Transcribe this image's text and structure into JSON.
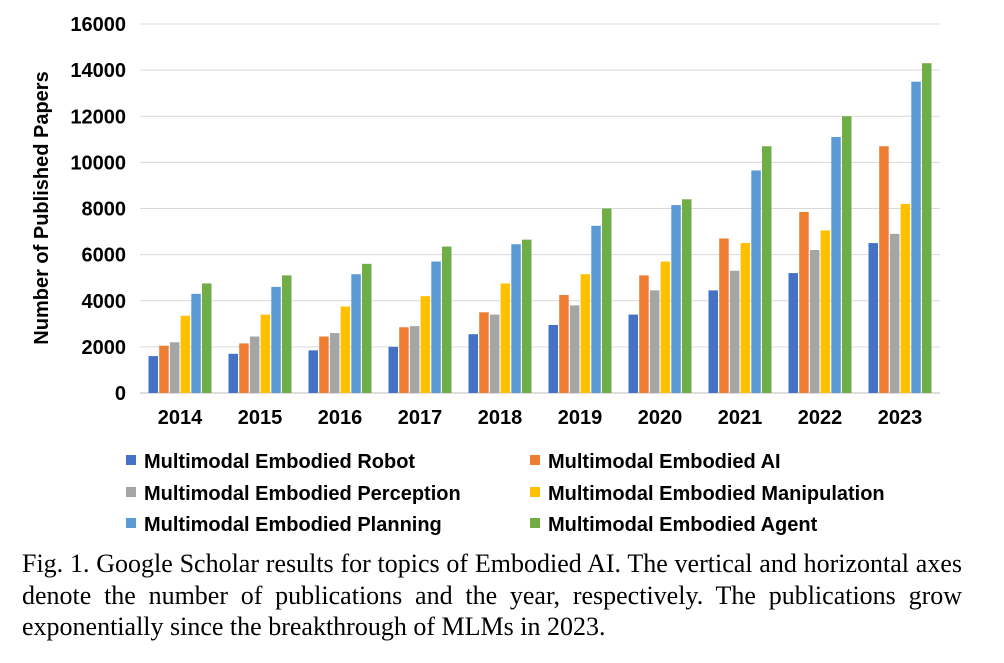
{
  "chart_data": {
    "type": "bar",
    "ylabel": "Number of Published Papers",
    "xlabel": "",
    "ylim": [
      0,
      16000
    ],
    "yticks": [
      "0",
      "2000",
      "4000",
      "6000",
      "8000",
      "10000",
      "12000",
      "14000",
      "16000"
    ],
    "categories": [
      "2014",
      "2015",
      "2016",
      "2017",
      "2018",
      "2019",
      "2020",
      "2021",
      "2022",
      "2023"
    ],
    "grid": true,
    "legend_position": "bottom",
    "series": [
      {
        "name": "Multimodal Embodied Robot",
        "color": "#4472C4",
        "values": [
          1600,
          1700,
          1850,
          2000,
          2550,
          2950,
          3400,
          4450,
          5200,
          6500
        ]
      },
      {
        "name": "Multimodal Embodied AI",
        "color": "#ED7D31",
        "values": [
          2050,
          2150,
          2450,
          2850,
          3500,
          4250,
          5100,
          6700,
          7850,
          10700
        ]
      },
      {
        "name": "Multimodal Embodied Perception",
        "color": "#A5A5A5",
        "values": [
          2200,
          2450,
          2600,
          2900,
          3400,
          3800,
          4450,
          5300,
          6200,
          6900
        ]
      },
      {
        "name": "Multimodal Embodied Manipulation",
        "color": "#FFC000",
        "values": [
          3350,
          3400,
          3750,
          4200,
          4750,
          5150,
          5700,
          6500,
          7050,
          8200
        ]
      },
      {
        "name": "Multimodal Embodied Planning",
        "color": "#5B9BD5",
        "values": [
          4300,
          4600,
          5150,
          5700,
          6450,
          7250,
          8150,
          9650,
          11100,
          13500
        ]
      },
      {
        "name": "Multimodal Embodied Agent",
        "color": "#70AD47",
        "values": [
          4750,
          5100,
          5600,
          6350,
          6650,
          8000,
          8400,
          10700,
          12000,
          14300
        ]
      }
    ]
  },
  "caption": {
    "text": "Fig. 1.  Google Scholar results for topics of Embodied AI. The vertical and horizontal axes denote the number of publications and the year, respectively. The publications grow exponentially since the breakthrough of MLMs in 2023."
  }
}
